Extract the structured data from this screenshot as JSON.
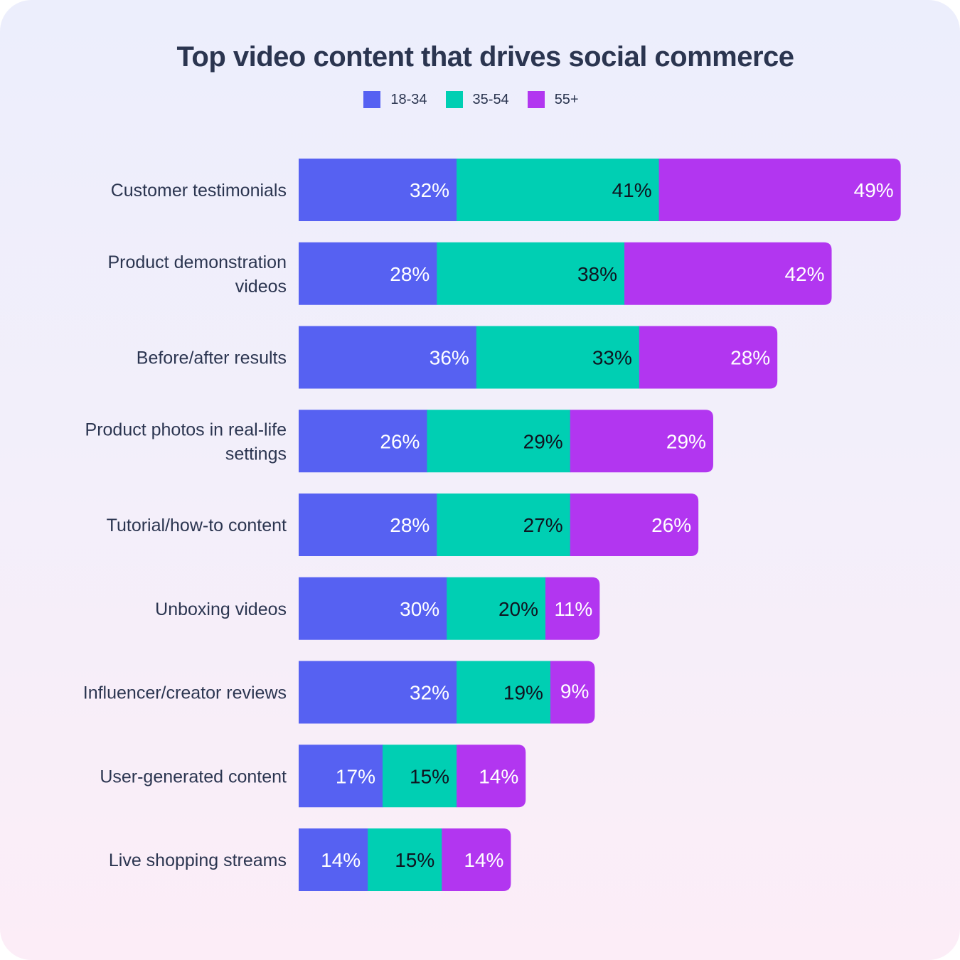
{
  "chart_data": {
    "type": "bar",
    "orientation": "horizontal",
    "stacked": true,
    "title": "Top video content that drives social commerce",
    "legend_position": "top-center",
    "grid": false,
    "categories": [
      [
        "Customer testimonials"
      ],
      [
        "Product demonstration",
        "videos"
      ],
      [
        "Before/after results"
      ],
      [
        "Product photos in real-life",
        "settings"
      ],
      [
        "Tutorial/how-to content"
      ],
      [
        "Unboxing videos"
      ],
      [
        "Influencer/creator reviews"
      ],
      [
        "User-generated content"
      ],
      [
        "Live shopping streams"
      ]
    ],
    "series": [
      {
        "name": "18-34",
        "color": "#5661f2",
        "label_color": "#ffffff",
        "values": [
          32,
          28,
          36,
          26,
          28,
          30,
          32,
          17,
          14
        ]
      },
      {
        "name": "35-54",
        "color": "#00cfb3",
        "label_color": "#0f1420",
        "values": [
          41,
          38,
          33,
          29,
          27,
          20,
          19,
          15,
          15
        ]
      },
      {
        "name": "55+",
        "color": "#b236f0",
        "label_color": "#ffffff",
        "values": [
          49,
          42,
          28,
          29,
          26,
          11,
          9,
          14,
          14
        ]
      }
    ],
    "value_suffix": "%"
  }
}
